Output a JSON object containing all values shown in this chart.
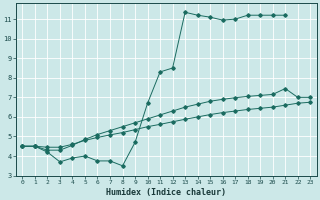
{
  "xlabel": "Humidex (Indice chaleur)",
  "bg_color": "#cce8e8",
  "grid_color": "#ffffff",
  "line_color": "#1a6b60",
  "xlim": [
    -0.5,
    23.5
  ],
  "ylim": [
    3,
    11.8
  ],
  "yticks": [
    3,
    4,
    5,
    6,
    7,
    8,
    9,
    10,
    11
  ],
  "xticks": [
    0,
    1,
    2,
    3,
    4,
    5,
    6,
    7,
    8,
    9,
    10,
    11,
    12,
    13,
    14,
    15,
    16,
    17,
    18,
    19,
    20,
    21,
    22,
    23
  ],
  "line1_x": [
    0,
    1,
    2,
    3,
    4,
    5,
    6,
    7,
    8,
    9,
    10,
    11,
    12,
    13,
    14,
    15,
    16,
    17,
    18,
    19,
    20,
    21
  ],
  "line1_y": [
    4.5,
    4.5,
    4.2,
    3.7,
    3.9,
    4.0,
    3.75,
    3.75,
    3.5,
    4.7,
    6.7,
    8.3,
    8.5,
    11.35,
    11.2,
    11.1,
    10.95,
    11.0,
    11.2,
    11.2,
    11.2,
    11.2
  ],
  "line2_x": [
    0,
    1,
    2,
    3,
    4,
    5,
    6,
    7,
    8,
    9,
    10,
    11,
    12,
    13,
    14,
    15,
    16,
    17,
    18,
    19,
    20,
    21,
    22,
    23
  ],
  "line2_y": [
    4.5,
    4.5,
    4.3,
    4.3,
    4.55,
    4.85,
    5.1,
    5.3,
    5.5,
    5.7,
    5.9,
    6.1,
    6.3,
    6.5,
    6.65,
    6.8,
    6.9,
    6.98,
    7.05,
    7.1,
    7.15,
    7.45,
    7.0,
    7.0
  ],
  "line3_x": [
    0,
    1,
    2,
    3,
    4,
    5,
    6,
    7,
    8,
    9,
    10,
    11,
    12,
    13,
    14,
    15,
    16,
    17,
    18,
    19,
    20,
    21,
    22,
    23
  ],
  "line3_y": [
    4.5,
    4.5,
    4.45,
    4.45,
    4.6,
    4.8,
    4.95,
    5.08,
    5.2,
    5.35,
    5.5,
    5.62,
    5.75,
    5.88,
    6.0,
    6.12,
    6.22,
    6.3,
    6.38,
    6.44,
    6.5,
    6.6,
    6.7,
    6.75
  ]
}
